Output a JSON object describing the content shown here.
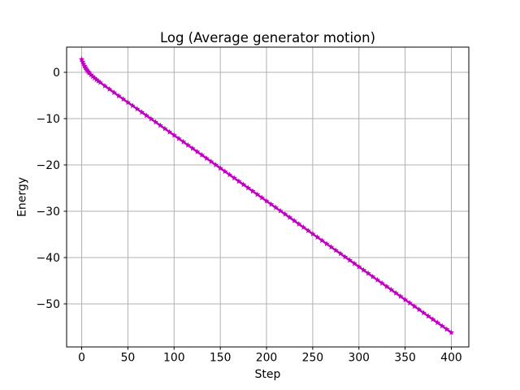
{
  "figure": {
    "title": "Log (Average generator motion)",
    "xlabel": "Step",
    "ylabel": "Energy"
  },
  "colors": {
    "line": "#C000C0",
    "grid": "#B0B0B0",
    "spine": "#000000",
    "text": "#000000",
    "background": "#FFFFFF"
  },
  "chart_data": {
    "type": "line",
    "title": "Log (Average generator motion)",
    "xlabel": "Step",
    "ylabel": "Energy",
    "legend": null,
    "grid": true,
    "marker": "star",
    "line_color": "#C000C0",
    "xlim": [
      -16.3,
      418.9
    ],
    "ylim": [
      -59.3,
      5.44
    ],
    "x_ticks": [
      0,
      50,
      100,
      150,
      200,
      250,
      300,
      350,
      400
    ],
    "y_ticks": [
      0,
      -10,
      -20,
      -30,
      -40,
      -50
    ],
    "x_tick_labels": [
      "0",
      "50",
      "100",
      "150",
      "200",
      "250",
      "300",
      "350",
      "400"
    ],
    "y_tick_labels": [
      "0",
      "−10",
      "−20",
      "−30",
      "−40",
      "−50"
    ],
    "series": [
      {
        "name": "log-average-generator-motion",
        "x": [
          0,
          1,
          2,
          3,
          4,
          5,
          6,
          7,
          8,
          10,
          12,
          14,
          16,
          18,
          20,
          25,
          30,
          35,
          40,
          45,
          50,
          55,
          60,
          65,
          70,
          75,
          80,
          85,
          90,
          95,
          100,
          105,
          110,
          115,
          120,
          125,
          130,
          135,
          140,
          145,
          150,
          155,
          160,
          165,
          170,
          175,
          180,
          185,
          190,
          195,
          200,
          205,
          210,
          215,
          220,
          225,
          230,
          235,
          240,
          245,
          250,
          255,
          260,
          265,
          270,
          275,
          280,
          285,
          290,
          295,
          300,
          305,
          310,
          315,
          320,
          325,
          330,
          335,
          340,
          345,
          350,
          355,
          360,
          365,
          370,
          375,
          380,
          385,
          390,
          395,
          400
        ],
        "y": [
          2.8,
          2.26,
          1.79,
          1.38,
          1.02,
          0.7,
          0.41,
          0.15,
          -0.09,
          -0.52,
          -0.9,
          -1.25,
          -1.58,
          -1.9,
          -2.2,
          -2.94,
          -3.65,
          -4.37,
          -5.08,
          -5.79,
          -6.5,
          -7.21,
          -7.92,
          -8.63,
          -9.34,
          -10.05,
          -10.76,
          -11.47,
          -12.18,
          -12.89,
          -13.6,
          -14.31,
          -15.02,
          -15.73,
          -16.44,
          -17.15,
          -17.86,
          -18.57,
          -19.28,
          -19.99,
          -20.7,
          -21.41,
          -22.12,
          -22.83,
          -23.54,
          -24.25,
          -24.96,
          -25.67,
          -26.38,
          -27.09,
          -27.8,
          -28.51,
          -29.22,
          -29.93,
          -30.64,
          -31.35,
          -32.06,
          -32.77,
          -33.48,
          -34.19,
          -34.9,
          -35.61,
          -36.32,
          -37.03,
          -37.74,
          -38.45,
          -39.16,
          -39.87,
          -40.58,
          -41.29,
          -42.0,
          -42.71,
          -43.42,
          -44.13,
          -44.84,
          -45.55,
          -46.26,
          -46.97,
          -47.68,
          -48.39,
          -49.1,
          -49.81,
          -50.52,
          -51.23,
          -51.94,
          -52.65,
          -53.36,
          -54.07,
          -54.78,
          -55.49,
          -56.2
        ]
      }
    ]
  }
}
